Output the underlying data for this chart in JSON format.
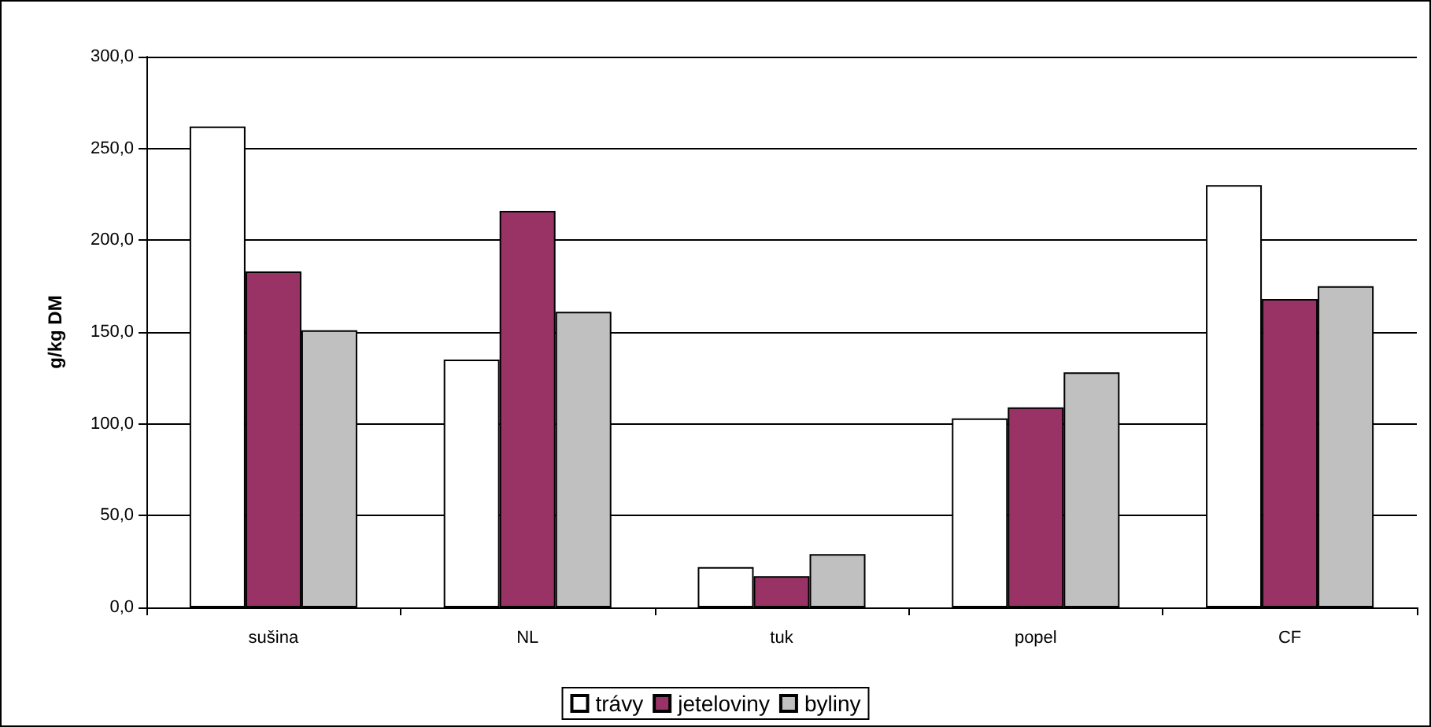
{
  "chart_data": {
    "type": "bar",
    "ylabel": "g/kg DM",
    "categories": [
      "sušina",
      "NL",
      "tuk",
      "popel",
      "CF"
    ],
    "series": [
      {
        "name": "trávy",
        "color": "#ffffff",
        "values": [
          262,
          135,
          22,
          103,
          230
        ]
      },
      {
        "name": "jeteloviny",
        "color": "#993366",
        "values": [
          183,
          216,
          17,
          109,
          168
        ]
      },
      {
        "name": "byliny",
        "color": "#c0c0c0",
        "values": [
          151,
          161,
          29,
          128,
          175
        ]
      }
    ],
    "ylim": [
      0,
      300
    ],
    "yticks": [
      {
        "value": 0,
        "label": "0,0"
      },
      {
        "value": 50,
        "label": "50,0"
      },
      {
        "value": 100,
        "label": "100,0"
      },
      {
        "value": 150,
        "label": "150,0"
      },
      {
        "value": 200,
        "label": "200,0"
      },
      {
        "value": 250,
        "label": "250,0"
      },
      {
        "value": 300,
        "label": "300,0"
      }
    ],
    "grid": "y",
    "legend": "bottom"
  }
}
